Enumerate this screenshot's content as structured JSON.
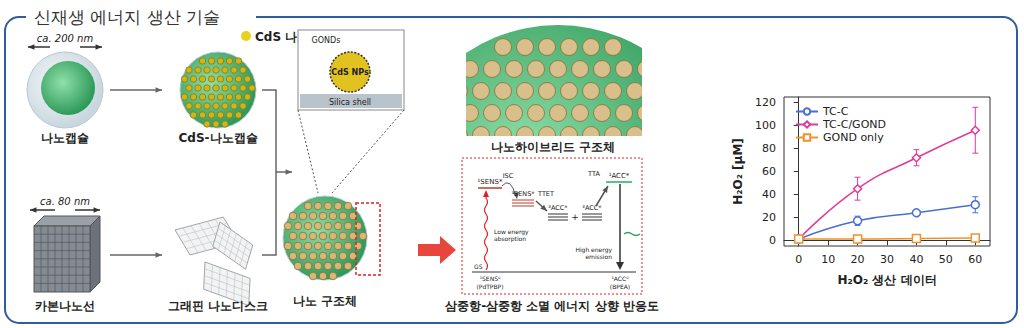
{
  "header": {
    "title": "신재생 에너지 생산 기술"
  },
  "diagram": {
    "nanocapsule": {
      "size": "ca. 200 nm",
      "label": "나노캡슐"
    },
    "cds_nanocapsule": {
      "label": "CdS-나노캡슐",
      "particle": "CdS 나노입자"
    },
    "carbon_nanowire": {
      "size": "ca. 80 nm",
      "label": "카본나노선"
    },
    "graphene": {
      "label": "그래핀 나노디스크"
    },
    "inset": {
      "gonds": "GONDs",
      "particle": "CdS NPs",
      "shell": "Silica shell"
    },
    "nanostructure": {
      "label": "나노 구조체"
    },
    "nanohybrid": {
      "label": "나노하이브리드 구조체"
    },
    "tta": {
      "caption": "삼중항-삼중항 소멸 에너지 상향 반응도",
      "sens_singlet": "¹SENS*",
      "isc": "ISC",
      "sens_triplet": "³SENS*",
      "ttet": "TTET",
      "acc_triplet": "³ACC*",
      "plus": "+",
      "tta": "TTA",
      "acc_singlet": "¹ACC*",
      "absorption": [
        "Low energy",
        "absorption"
      ],
      "emission": [
        "High energy",
        "emission"
      ],
      "gs": "GS",
      "sens_ground": [
        "¹SENS⁰",
        "(PdTPBP)"
      ],
      "acc_ground": [
        "¹ACC⁰",
        "(BPEA)"
      ]
    }
  },
  "chart_data": {
    "type": "line",
    "x_label": "H₂O₂ 생산 데이터",
    "y_label": "H₂O₂ [μM]",
    "x": [
      0,
      20,
      40,
      60
    ],
    "series": [
      {
        "name": "TC-C",
        "color": "#4a6fd4",
        "marker": "circle",
        "values": [
          1,
          17,
          24,
          31
        ],
        "errors": [
          0.5,
          4,
          2,
          7
        ]
      },
      {
        "name": "TC-C/GOND",
        "color": "#e03a9a",
        "marker": "diamond",
        "values": [
          1,
          45,
          72,
          96
        ],
        "errors": [
          1,
          10,
          7,
          20
        ]
      },
      {
        "name": "GOND only",
        "color": "#f0922b",
        "marker": "square",
        "values": [
          1,
          1,
          1.5,
          2
        ],
        "errors": [
          0.5,
          0.5,
          0.5,
          1
        ]
      }
    ],
    "xlim": [
      -5,
      65
    ],
    "xticks": [
      0,
      10,
      20,
      30,
      40,
      50,
      60
    ],
    "ylim": [
      -5,
      125
    ],
    "yticks": [
      0,
      20,
      40,
      60,
      80,
      100,
      120
    ],
    "grid": false,
    "legend": "upper left"
  }
}
